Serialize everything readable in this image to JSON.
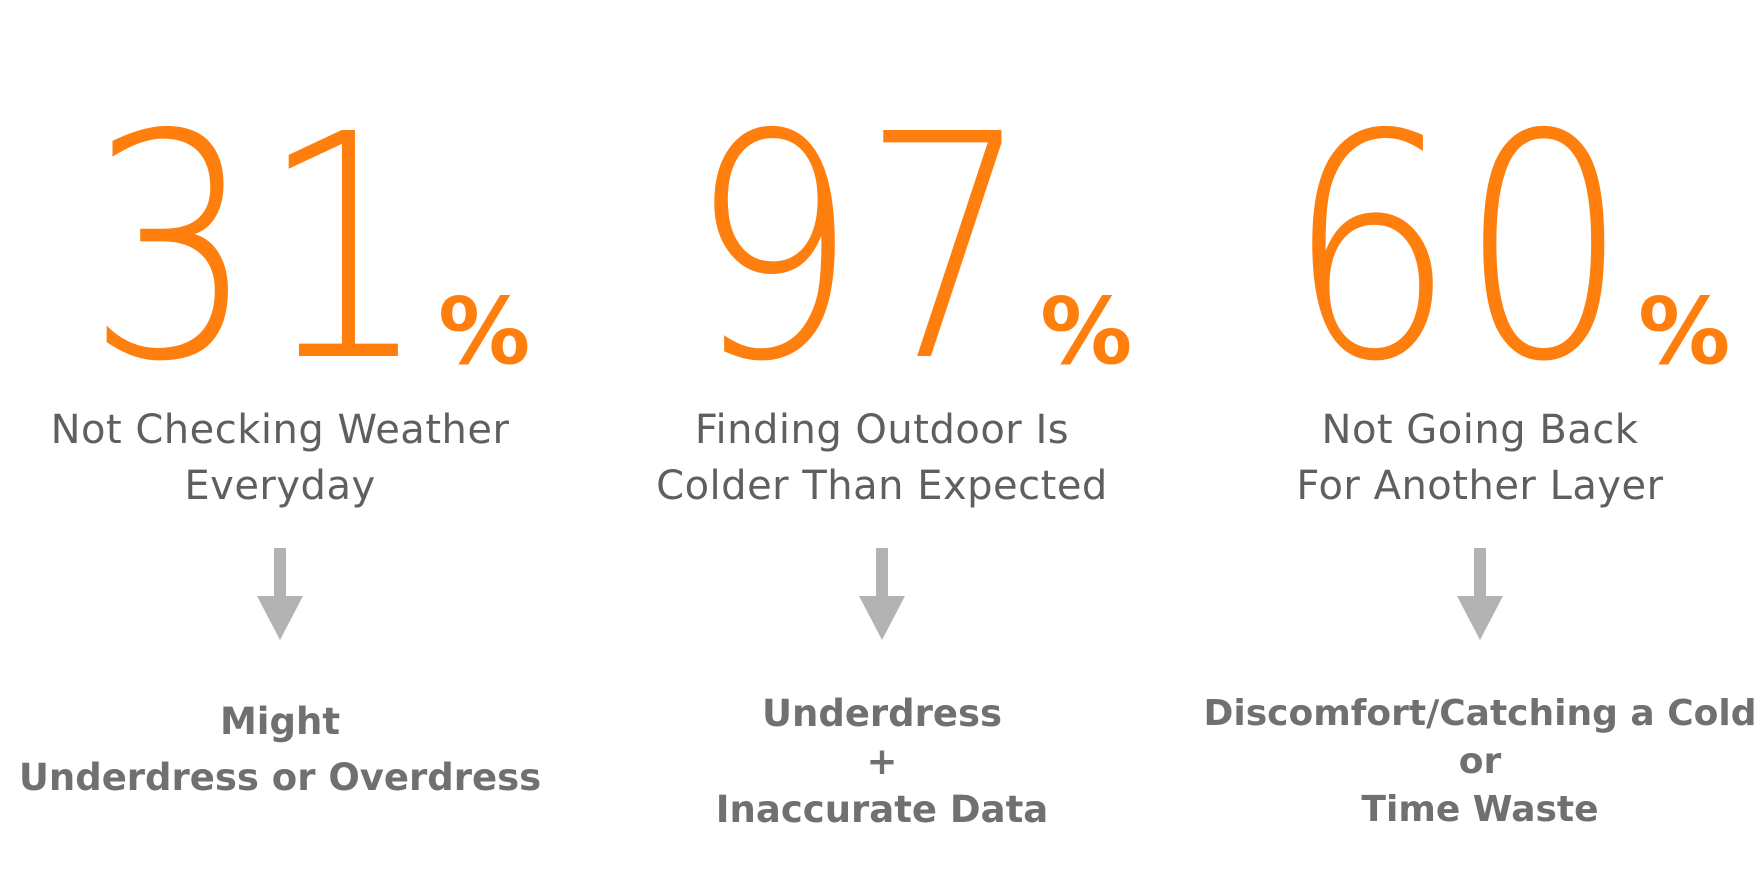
{
  "colors": {
    "accent": "#FF7F0E",
    "caption": "#5F5F5F",
    "outcome": "#707070",
    "arrow": "#B3B3B3"
  },
  "stats": [
    {
      "number": "31",
      "unit": "%",
      "caption_lines": [
        "Not Checking Weather",
        "Everyday"
      ],
      "arrow_icon": "arrow-down-icon",
      "outcome_lines": [
        "Might",
        "Underdress or Overdress"
      ]
    },
    {
      "number": "97",
      "unit": "%",
      "caption_lines": [
        "Finding Outdoor Is",
        "Colder Than Expected"
      ],
      "arrow_icon": "arrow-down-icon",
      "outcome_lines": [
        "Underdress",
        "+",
        "Inaccurate Data"
      ]
    },
    {
      "number": "60",
      "unit": "%",
      "caption_lines": [
        "Not Going Back",
        "For Another Layer"
      ],
      "arrow_icon": "arrow-down-icon",
      "outcome_lines": [
        "Discomfort/Catching a Cold",
        "or",
        "Time Waste"
      ]
    }
  ]
}
